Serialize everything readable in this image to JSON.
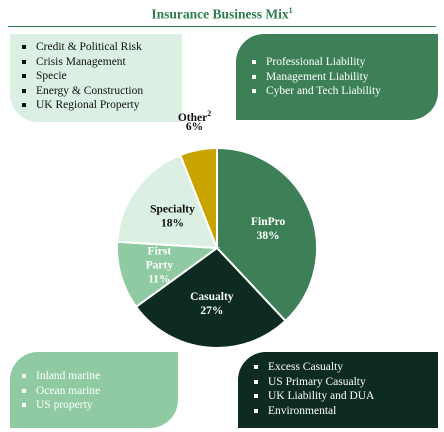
{
  "title": "Insurance Business Mix",
  "title_footnote": "1",
  "boxes": {
    "top_left": [
      "Credit & Political Risk",
      "Crisis Management",
      "Specie",
      "Energy & Construction",
      "UK Regional Property"
    ],
    "top_right": [
      "Professional Liability",
      "Management Liability",
      "Cyber and Tech Liability"
    ],
    "bottom_left": [
      "Inland marine",
      "Ocean marine",
      "US property"
    ],
    "bottom_right": [
      "Excess Casualty",
      "US Primary Casualty",
      "UK Liability and DUA",
      "Environmental"
    ]
  },
  "colors": {
    "finpro": "#3d8058",
    "casualty": "#0e2b22",
    "first_party": "#8fcaa3",
    "specialty": "#dcefe3",
    "other": "#c9a400",
    "title": "#2e7d4f"
  },
  "chart_data": {
    "type": "pie",
    "title": "Insurance Business Mix",
    "start_angle_deg": 0,
    "slices": [
      {
        "label": "FinPro",
        "value": 38,
        "value_label": "38%",
        "color": "#3d8058",
        "label_color": "#ffffff"
      },
      {
        "label": "Casualty",
        "value": 27,
        "value_label": "27%",
        "color": "#0e2b22",
        "label_color": "#ffffff"
      },
      {
        "label": "First Party",
        "value": 11,
        "value_label": "11%",
        "color": "#8fcaa3",
        "label_color": "#ffffff",
        "label_lines": [
          "First",
          "Party"
        ]
      },
      {
        "label": "Specialty",
        "value": 18,
        "value_label": "18%",
        "color": "#dcefe3",
        "label_color": "#111111"
      },
      {
        "label": "Other",
        "label_footnote": "2",
        "value": 6,
        "value_label": "6%",
        "color": "#c9a400",
        "label_color": "#111111",
        "label_outside": true
      }
    ]
  }
}
